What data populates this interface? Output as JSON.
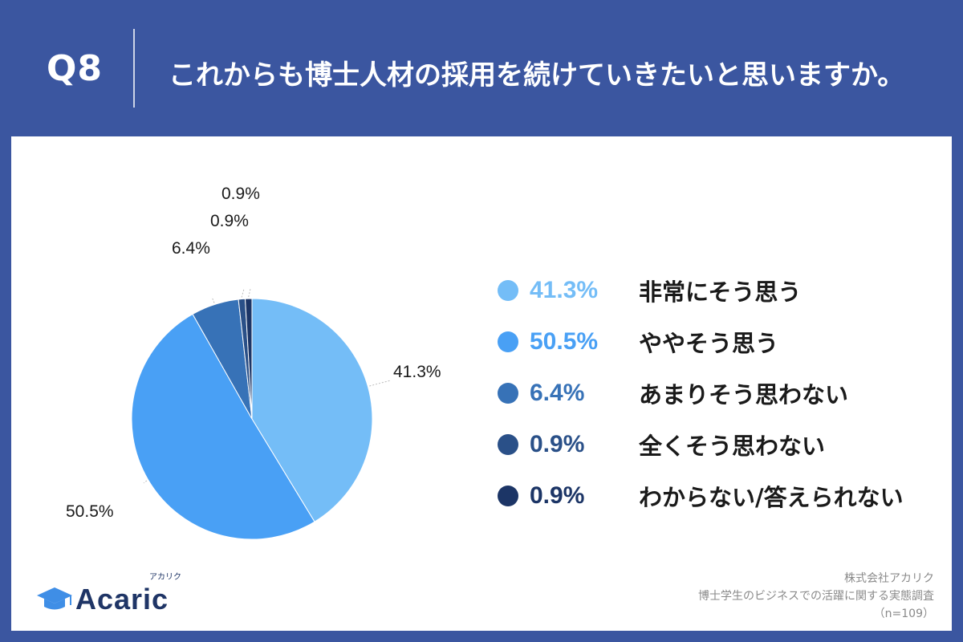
{
  "header": {
    "question_number": "Q8",
    "question": "これからも博士人材の採用を続けていきたいと思いますか。"
  },
  "chart_data": {
    "type": "pie",
    "title": "これからも博士人材の採用を続けていきたいと思いますか。",
    "slices": [
      {
        "label": "非常にそう思う",
        "value": 41.3,
        "display": "41.3%",
        "color": "#74bdf7"
      },
      {
        "label": "ややそう思う",
        "value": 50.5,
        "display": "50.5%",
        "color": "#49a0f5"
      },
      {
        "label": "あまりそう思わない",
        "value": 6.4,
        "display": "6.4%",
        "color": "#3772b7"
      },
      {
        "label": "全くそう思わない",
        "value": 0.9,
        "display": "0.9%",
        "color": "#2a5088"
      },
      {
        "label": "わからない/答えられない",
        "value": 0.9,
        "display": "0.9%",
        "color": "#1c3566"
      }
    ],
    "start_angle": "12 o'clock",
    "direction": "clockwise",
    "legend_position": "right"
  },
  "legend": [
    {
      "pct": "41.3%",
      "label": "非常にそう思う",
      "color": "#74bdf7"
    },
    {
      "pct": "50.5%",
      "label": "ややそう思う",
      "color": "#49a0f5"
    },
    {
      "pct": "6.4%",
      "label": "あまりそう思わない",
      "color": "#3772b7"
    },
    {
      "pct": "0.9%",
      "label": "全くそう思わない",
      "color": "#2a5088"
    },
    {
      "pct": "0.9%",
      "label": "わからない/答えられない",
      "color": "#1c3566"
    }
  ],
  "logo": {
    "name": "Acaric",
    "kana": "アカリク"
  },
  "credits": {
    "company": "株式会社アカリク",
    "survey": "博士学生のビジネスでの活躍に関する実態調査",
    "sample": "（n=109）"
  },
  "colors": {
    "background": "#3b56a0",
    "card": "#ffffff"
  }
}
